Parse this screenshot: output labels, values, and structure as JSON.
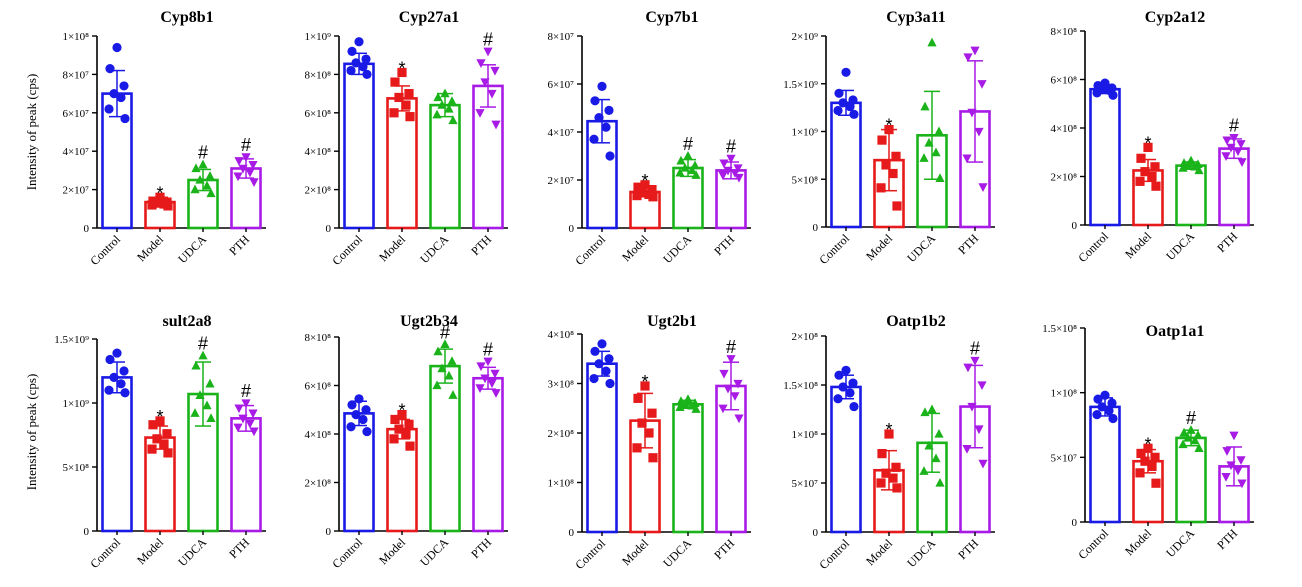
{
  "figure": {
    "ylabel": "Intensity of peak (cps)"
  },
  "colors": [
    "#1a1ae6",
    "#e61a1a",
    "#1ab31a",
    "#a81ae6"
  ],
  "chart_data": [
    {
      "type": "bar",
      "title": "Cyp8b1",
      "categories": [
        "Control",
        "Model",
        "UDCA",
        "PTH"
      ],
      "ylim": [
        0,
        100000000
      ],
      "yticks": [
        {
          "v": 0,
          "label": "0"
        },
        {
          "v": 20000000,
          "label": "2×10⁷"
        },
        {
          "v": 40000000,
          "label": "4×10⁷"
        },
        {
          "v": 60000000,
          "label": "6×10⁷"
        },
        {
          "v": 80000000,
          "label": "8×10⁷"
        },
        {
          "v": 100000000,
          "label": "1×10⁸"
        }
      ],
      "values": [
        70000000,
        13500000,
        25000000,
        31000000
      ],
      "errors": [
        12000000,
        2500000,
        5500000,
        5000000
      ],
      "points": [
        [
          94000000,
          83000000,
          74000000,
          70000000,
          68000000,
          62000000,
          57000000
        ],
        [
          16000000,
          14000000,
          13500000,
          13000000,
          12500000,
          12000000,
          11500000
        ],
        [
          33000000,
          31000000,
          27000000,
          25000000,
          22000000,
          20000000,
          18000000
        ],
        [
          37000000,
          35000000,
          33000000,
          31000000,
          29000000,
          27000000,
          24000000
        ]
      ],
      "annotations": [
        "",
        "*",
        "#",
        "#"
      ]
    },
    {
      "type": "bar",
      "title": "Cyp27a1",
      "categories": [
        "Control",
        "Model",
        "UDCA",
        "PTH"
      ],
      "ylim": [
        0,
        1000000000
      ],
      "yticks": [
        {
          "v": 0,
          "label": "0"
        },
        {
          "v": 200000000,
          "label": "2×10⁸"
        },
        {
          "v": 400000000,
          "label": "4×10⁸"
        },
        {
          "v": 600000000,
          "label": "6×10⁸"
        },
        {
          "v": 800000000,
          "label": "8×10⁸"
        },
        {
          "v": 1000000000,
          "label": "1×10⁹"
        }
      ],
      "values": [
        855000000,
        675000000,
        640000000,
        740000000
      ],
      "errors": [
        55000000,
        65000000,
        60000000,
        110000000
      ],
      "points": [
        [
          970000000,
          920000000,
          880000000,
          860000000,
          840000000,
          820000000,
          800000000
        ],
        [
          810000000,
          760000000,
          700000000,
          680000000,
          640000000,
          600000000,
          580000000
        ],
        [
          700000000,
          680000000,
          660000000,
          640000000,
          620000000,
          590000000,
          560000000
        ],
        [
          920000000,
          860000000,
          820000000,
          760000000,
          700000000,
          600000000,
          540000000
        ]
      ],
      "annotations": [
        "",
        "*",
        "",
        "#"
      ]
    },
    {
      "type": "bar",
      "title": "Cyp7b1",
      "categories": [
        "Control",
        "Model",
        "UDCA",
        "PTH"
      ],
      "ylim": [
        0,
        80000000
      ],
      "yticks": [
        {
          "v": 0,
          "label": "0"
        },
        {
          "v": 20000000,
          "label": "2×10⁷"
        },
        {
          "v": 40000000,
          "label": "4×10⁷"
        },
        {
          "v": 60000000,
          "label": "6×10⁷"
        },
        {
          "v": 80000000,
          "label": "8×10⁷"
        }
      ],
      "values": [
        44500000,
        15000000,
        25000000,
        24000000
      ],
      "errors": [
        9000000,
        2000000,
        3500000,
        3500000
      ],
      "points": [
        [
          59000000,
          53000000,
          49000000,
          46000000,
          42000000,
          37000000,
          30000000
        ],
        [
          18000000,
          17000000,
          16000000,
          15000000,
          14000000,
          13500000,
          13000000
        ],
        [
          30000000,
          28000000,
          26000000,
          25000000,
          24000000,
          23000000,
          22000000
        ],
        [
          29000000,
          27000000,
          25000000,
          24000000,
          23000000,
          22000000,
          21000000
        ]
      ],
      "annotations": [
        "",
        "*",
        "#",
        "#"
      ]
    },
    {
      "type": "bar",
      "title": "Cyp3a11",
      "categories": [
        "Control",
        "Model",
        "UDCA",
        "PTH"
      ],
      "ylim": [
        0,
        2000000000
      ],
      "yticks": [
        {
          "v": 0,
          "label": "0"
        },
        {
          "v": 500000000,
          "label": "5×10⁸"
        },
        {
          "v": 1000000000,
          "label": "1×10⁹"
        },
        {
          "v": 1500000000,
          "label": "1.5×10⁹"
        },
        {
          "v": 2000000000,
          "label": "2×10⁹"
        }
      ],
      "values": [
        1300000000,
        700000000,
        960000000,
        1210000000
      ],
      "errors": [
        130000000,
        320000000,
        460000000,
        530000000
      ],
      "points": [
        [
          1620000000,
          1400000000,
          1330000000,
          1300000000,
          1260000000,
          1220000000,
          1180000000
        ],
        [
          1020000000,
          910000000,
          740000000,
          650000000,
          560000000,
          410000000,
          220000000
        ],
        [
          1930000000,
          1260000000,
          1000000000,
          880000000,
          780000000,
          720000000,
          510000000
        ],
        [
          1850000000,
          1780000000,
          1500000000,
          1200000000,
          1000000000,
          720000000,
          420000000
        ]
      ],
      "annotations": [
        "",
        "*",
        "",
        ""
      ]
    },
    {
      "type": "bar",
      "title": "Cyp2a12",
      "categories": [
        "Control",
        "Model",
        "UDCA",
        "PTH"
      ],
      "ylim": [
        0,
        800000000
      ],
      "yticks": [
        {
          "v": 0,
          "label": "0"
        },
        {
          "v": 200000000,
          "label": "2×10⁸"
        },
        {
          "v": 400000000,
          "label": "4×10⁸"
        },
        {
          "v": 600000000,
          "label": "6×10⁸"
        },
        {
          "v": 800000000,
          "label": "8×10⁸"
        }
      ],
      "values": [
        560000000,
        225000000,
        245000000,
        315000000
      ],
      "errors": [
        18000000,
        45000000,
        15000000,
        40000000
      ],
      "points": [
        [
          585000000,
          575000000,
          565000000,
          560000000,
          555000000,
          545000000,
          535000000
        ],
        [
          320000000,
          275000000,
          240000000,
          220000000,
          200000000,
          180000000,
          160000000
        ],
        [
          265000000,
          255000000,
          250000000,
          245000000,
          240000000,
          235000000,
          225000000
        ],
        [
          360000000,
          350000000,
          335000000,
          320000000,
          305000000,
          285000000,
          260000000
        ]
      ],
      "annotations": [
        "",
        "*",
        "",
        "#"
      ]
    },
    {
      "type": "bar",
      "title": "sult2a8",
      "categories": [
        "Control",
        "Model",
        "UDCA",
        "PTH"
      ],
      "ylim": [
        0,
        1500000000
      ],
      "yticks": [
        {
          "v": 0,
          "label": "0"
        },
        {
          "v": 500000000,
          "label": "5×10⁸"
        },
        {
          "v": 1000000000,
          "label": "1×10⁹"
        },
        {
          "v": 1500000000,
          "label": "1.5×10⁹"
        }
      ],
      "values": [
        1200000000,
        730000000,
        1070000000,
        880000000
      ],
      "errors": [
        120000000,
        90000000,
        250000000,
        100000000
      ],
      "points": [
        [
          1390000000,
          1340000000,
          1250000000,
          1200000000,
          1150000000,
          1100000000,
          1080000000
        ],
        [
          860000000,
          830000000,
          760000000,
          720000000,
          680000000,
          640000000,
          610000000
        ],
        [
          1370000000,
          1290000000,
          1150000000,
          1060000000,
          980000000,
          920000000,
          880000000
        ],
        [
          1000000000,
          960000000,
          920000000,
          880000000,
          840000000,
          810000000,
          780000000
        ]
      ],
      "annotations": [
        "",
        "*",
        "#",
        "#"
      ]
    },
    {
      "type": "bar",
      "title": "Ugt2b34",
      "categories": [
        "Control",
        "Model",
        "UDCA",
        "PTH"
      ],
      "ylim": [
        0,
        800000000
      ],
      "yticks": [
        {
          "v": 0,
          "label": "0"
        },
        {
          "v": 200000000,
          "label": "2×10⁸"
        },
        {
          "v": 400000000,
          "label": "4×10⁸"
        },
        {
          "v": 600000000,
          "label": "6×10⁸"
        },
        {
          "v": 800000000,
          "label": "8×10⁸"
        }
      ],
      "values": [
        485000000,
        420000000,
        680000000,
        630000000
      ],
      "errors": [
        50000000,
        40000000,
        70000000,
        45000000
      ],
      "points": [
        [
          545000000,
          520000000,
          500000000,
          480000000,
          460000000,
          430000000,
          410000000
        ],
        [
          480000000,
          460000000,
          440000000,
          420000000,
          400000000,
          380000000,
          350000000
        ],
        [
          770000000,
          740000000,
          700000000,
          670000000,
          640000000,
          600000000,
          560000000
        ],
        [
          700000000,
          680000000,
          650000000,
          630000000,
          610000000,
          590000000,
          570000000
        ]
      ],
      "annotations": [
        "",
        "*",
        "#",
        "#"
      ]
    },
    {
      "type": "bar",
      "title": "Ugt2b1",
      "categories": [
        "Control",
        "Model",
        "UDCA",
        "PTH"
      ],
      "ylim": [
        0,
        400000000
      ],
      "yticks": [
        {
          "v": 0,
          "label": "0"
        },
        {
          "v": 100000000,
          "label": "1×10⁸"
        },
        {
          "v": 200000000,
          "label": "2×10⁸"
        },
        {
          "v": 300000000,
          "label": "3×10⁸"
        },
        {
          "v": 400000000,
          "label": "4×10⁸"
        }
      ],
      "values": [
        340000000,
        225000000,
        258000000,
        295000000
      ],
      "errors": [
        25000000,
        55000000,
        8000000,
        48000000
      ],
      "points": [
        [
          380000000,
          365000000,
          350000000,
          340000000,
          325000000,
          310000000,
          300000000
        ],
        [
          295000000,
          270000000,
          240000000,
          220000000,
          200000000,
          170000000,
          150000000
        ],
        [
          268000000,
          264000000,
          260000000,
          258000000,
          255000000,
          252000000,
          248000000
        ],
        [
          350000000,
          320000000,
          300000000,
          290000000,
          275000000,
          250000000,
          230000000
        ]
      ],
      "annotations": [
        "",
        "*",
        "",
        "#"
      ]
    },
    {
      "type": "bar",
      "title": "Oatp1b2",
      "categories": [
        "Control",
        "Model",
        "UDCA",
        "PTH"
      ],
      "ylim": [
        0,
        200000000
      ],
      "yticks": [
        {
          "v": 0,
          "label": "0"
        },
        {
          "v": 50000000,
          "label": "5×10⁷"
        },
        {
          "v": 100000000,
          "label": "1×10⁸"
        },
        {
          "v": 150000000,
          "label": "1.5×10⁸"
        },
        {
          "v": 200000000,
          "label": "2×10⁸"
        }
      ],
      "values": [
        148000000,
        63000000,
        91000000,
        128000000
      ],
      "errors": [
        12000000,
        20000000,
        30000000,
        42000000
      ],
      "points": [
        [
          165000000,
          160000000,
          152000000,
          148000000,
          142000000,
          136000000,
          128000000
        ],
        [
          100000000,
          80000000,
          66000000,
          60000000,
          55000000,
          50000000,
          45000000
        ],
        [
          125000000,
          122000000,
          100000000,
          88000000,
          75000000,
          62000000,
          50000000
        ],
        [
          175000000,
          168000000,
          150000000,
          128000000,
          105000000,
          85000000,
          70000000
        ]
      ],
      "annotations": [
        "",
        "*",
        "",
        "#"
      ]
    },
    {
      "type": "bar",
      "title": "Oatp1a1",
      "categories": [
        "Control",
        "Model",
        "UDCA",
        "PTH"
      ],
      "ylim": [
        0,
        150000000
      ],
      "yticks": [
        {
          "v": 0,
          "label": "0"
        },
        {
          "v": 50000000,
          "label": "5×10⁷"
        },
        {
          "v": 100000000,
          "label": "1×10⁸"
        },
        {
          "v": 150000000,
          "label": "1.5×10⁸"
        }
      ],
      "values": [
        89000000,
        47000000,
        65000000,
        43000000
      ],
      "errors": [
        7000000,
        9000000,
        6000000,
        15000000
      ],
      "points": [
        [
          98000000,
          95000000,
          92000000,
          89000000,
          86000000,
          83000000,
          80000000
        ],
        [
          57000000,
          53000000,
          50000000,
          47000000,
          43000000,
          38000000,
          30000000
        ],
        [
          71000000,
          69000000,
          67000000,
          65000000,
          63000000,
          60000000,
          57000000
        ],
        [
          67000000,
          55000000,
          48000000,
          44000000,
          40000000,
          35000000,
          30000000
        ]
      ],
      "annotations": [
        "",
        "*",
        "#",
        ""
      ]
    }
  ]
}
